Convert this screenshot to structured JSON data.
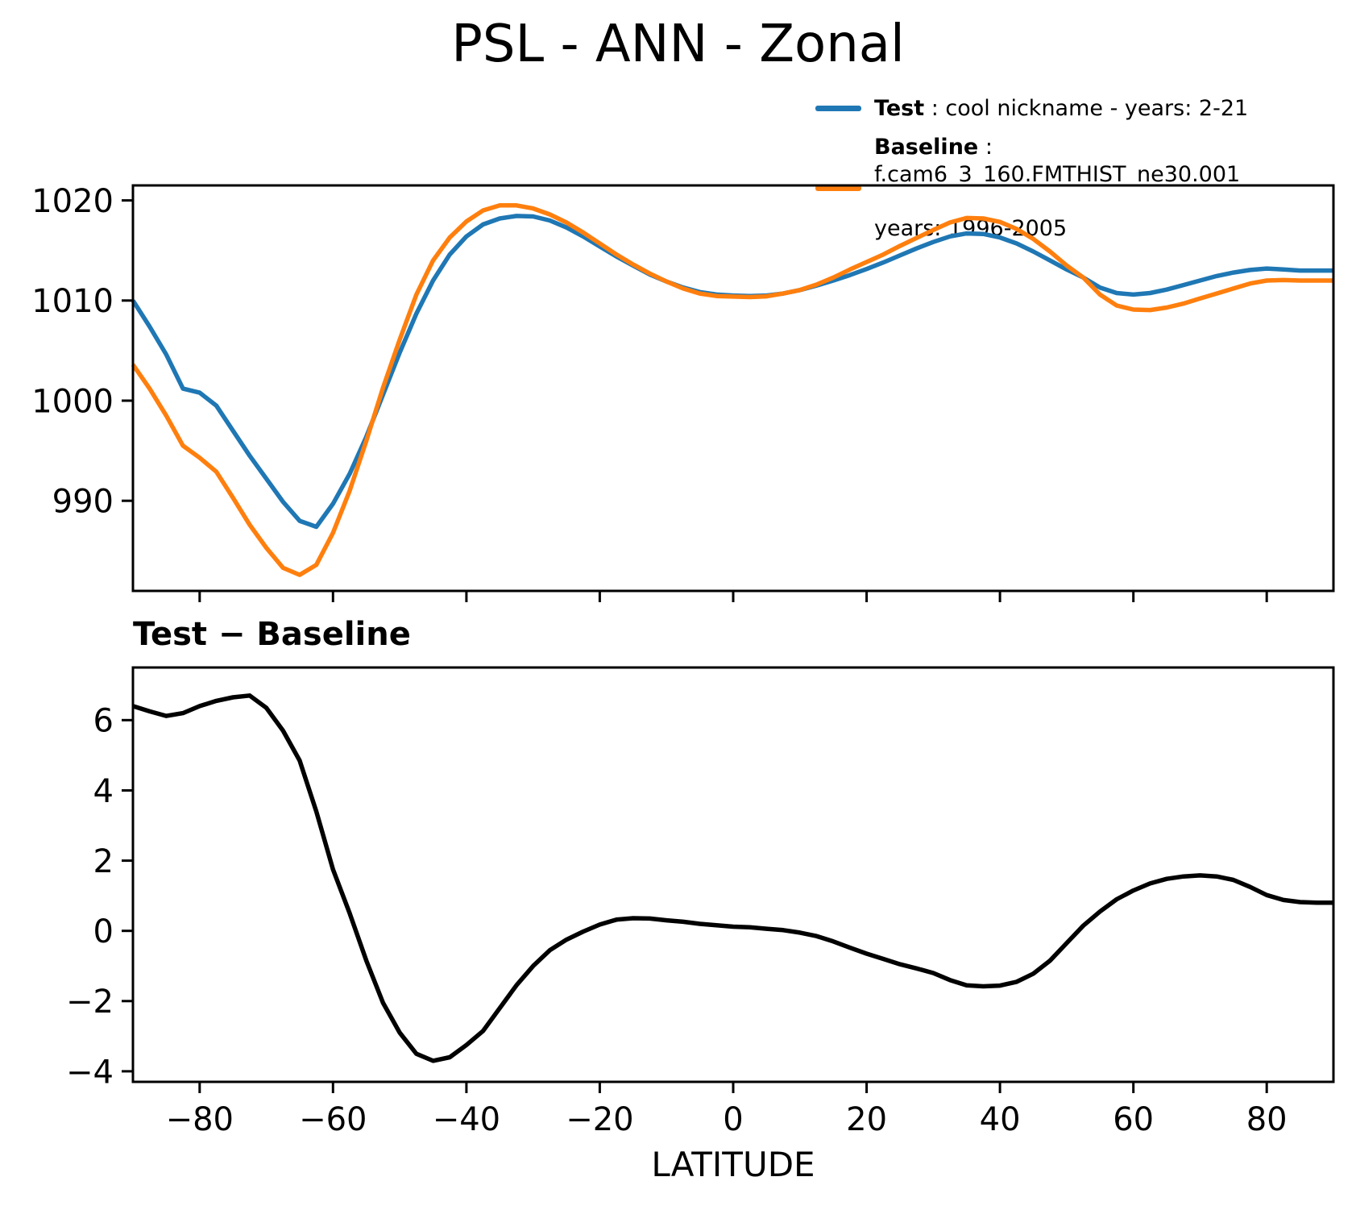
{
  "title": "PSL - ANN - Zonal",
  "xlabel": "LATITUDE",
  "legend": {
    "items": [
      {
        "label": "Test",
        "desc": " : cool nickname - years: 2-21",
        "desc2": "",
        "color": "#1f77b4"
      },
      {
        "label": "Baseline",
        "desc": " : f.cam6_3_160.FMTHIST_ne30.001",
        "desc2": "years: 1996-2005",
        "color": "#ff7f0e"
      }
    ]
  },
  "chart_data": [
    {
      "type": "line",
      "panel": "top",
      "xlim": [
        -90,
        90
      ],
      "ylim": [
        981,
        1021.5
      ],
      "grid": false,
      "legend_position": "upper right, outside axes",
      "xticks": [
        -80,
        -60,
        -40,
        -20,
        0,
        20,
        40,
        60,
        80
      ],
      "xtick_labels": null,
      "yticks": [
        1020,
        1010,
        1000,
        990
      ],
      "ytick_labels": [
        "1020",
        "1010",
        "1000",
        "990"
      ],
      "x": [
        -90,
        -87.5,
        -85,
        -82.5,
        -80,
        -77.5,
        -75,
        -72.5,
        -70,
        -67.5,
        -65,
        -62.5,
        -60,
        -57.5,
        -55,
        -52.5,
        -50,
        -47.5,
        -45,
        -42.5,
        -40,
        -37.5,
        -35,
        -32.5,
        -30,
        -27.5,
        -25,
        -22.5,
        -20,
        -17.5,
        -15,
        -12.5,
        -10,
        -7.5,
        -5,
        -2.5,
        0,
        2.5,
        5,
        7.5,
        10,
        12.5,
        15,
        17.5,
        20,
        22.5,
        25,
        27.5,
        30,
        32.5,
        35,
        37.5,
        40,
        42.5,
        45,
        47.5,
        50,
        52.5,
        55,
        57.5,
        60,
        62.5,
        65,
        67.5,
        70,
        72.5,
        75,
        77.5,
        80,
        82.5,
        85,
        87.5,
        90
      ],
      "series": [
        {
          "name": "Test",
          "color": "#1f77b4",
          "values": [
            1010.0,
            1007.4,
            1004.6,
            1001.2,
            1000.8,
            999.5,
            997.0,
            994.5,
            992.2,
            989.9,
            988.0,
            987.4,
            989.7,
            992.7,
            996.4,
            1000.6,
            1004.8,
            1008.7,
            1012.0,
            1014.6,
            1016.4,
            1017.6,
            1018.2,
            1018.45,
            1018.4,
            1018.0,
            1017.3,
            1016.4,
            1015.4,
            1014.4,
            1013.5,
            1012.6,
            1011.9,
            1011.3,
            1010.85,
            1010.6,
            1010.5,
            1010.45,
            1010.5,
            1010.7,
            1011.05,
            1011.5,
            1012.0,
            1012.55,
            1013.15,
            1013.8,
            1014.5,
            1015.2,
            1015.85,
            1016.4,
            1016.7,
            1016.65,
            1016.3,
            1015.7,
            1014.9,
            1014.0,
            1013.1,
            1012.3,
            1011.3,
            1010.75,
            1010.6,
            1010.75,
            1011.1,
            1011.55,
            1012.0,
            1012.45,
            1012.8,
            1013.05,
            1013.2,
            1013.1,
            1013.0,
            1013.0,
            1013.0
          ]
        },
        {
          "name": "Baseline",
          "color": "#ff7f0e",
          "values": [
            1003.6,
            1001.2,
            998.5,
            995.5,
            994.3,
            992.9,
            990.3,
            987.6,
            985.3,
            983.3,
            982.6,
            983.6,
            986.8,
            991.0,
            996.0,
            1001.3,
            1006.1,
            1010.6,
            1014.0,
            1016.3,
            1017.9,
            1019.0,
            1019.5,
            1019.5,
            1019.2,
            1018.6,
            1017.8,
            1016.8,
            1015.7,
            1014.6,
            1013.6,
            1012.7,
            1011.9,
            1011.2,
            1010.7,
            1010.45,
            1010.4,
            1010.35,
            1010.42,
            1010.7,
            1011.05,
            1011.6,
            1012.3,
            1013.1,
            1013.85,
            1014.6,
            1015.45,
            1016.25,
            1017.05,
            1017.8,
            1018.25,
            1018.2,
            1017.85,
            1017.15,
            1016.15,
            1014.9,
            1013.5,
            1012.3,
            1010.6,
            1009.5,
            1009.1,
            1009.05,
            1009.3,
            1009.7,
            1010.2,
            1010.7,
            1011.2,
            1011.7,
            1012.0,
            1012.05,
            1012.0,
            1012.0,
            1012.0
          ]
        }
      ]
    },
    {
      "type": "line",
      "panel": "bottom",
      "title": "Test − Baseline",
      "xlabel": "LATITUDE",
      "xlim": [
        -90,
        90
      ],
      "ylim": [
        -4.3,
        7.5
      ],
      "grid": false,
      "xticks": [
        -80,
        -60,
        -40,
        -20,
        0,
        20,
        40,
        60,
        80
      ],
      "xtick_labels": [
        "−80",
        "−60",
        "−40",
        "−20",
        "0",
        "20",
        "40",
        "60",
        "80"
      ],
      "yticks": [
        6,
        4,
        2,
        0,
        -2,
        -4
      ],
      "ytick_labels": [
        "6",
        "4",
        "2",
        "0",
        "−2",
        "−4"
      ],
      "x": [
        -90,
        -87.5,
        -85,
        -82.5,
        -80,
        -77.5,
        -75,
        -72.5,
        -70,
        -67.5,
        -65,
        -62.5,
        -60,
        -57.5,
        -55,
        -52.5,
        -50,
        -47.5,
        -45,
        -42.5,
        -40,
        -37.5,
        -35,
        -32.5,
        -30,
        -27.5,
        -25,
        -22.5,
        -20,
        -17.5,
        -15,
        -12.5,
        -10,
        -7.5,
        -5,
        -2.5,
        0,
        2.5,
        5,
        7.5,
        10,
        12.5,
        15,
        17.5,
        20,
        22.5,
        25,
        27.5,
        30,
        32.5,
        35,
        37.5,
        40,
        42.5,
        45,
        47.5,
        50,
        52.5,
        55,
        57.5,
        60,
        62.5,
        65,
        67.5,
        70,
        72.5,
        75,
        77.5,
        80,
        82.5,
        85,
        87.5,
        90
      ],
      "series": [
        {
          "name": "Test − Baseline",
          "color": "#000000",
          "values": [
            6.4,
            6.25,
            6.12,
            6.2,
            6.4,
            6.55,
            6.65,
            6.7,
            6.35,
            5.7,
            4.85,
            3.4,
            1.75,
            0.5,
            -0.85,
            -2.05,
            -2.9,
            -3.5,
            -3.7,
            -3.6,
            -3.25,
            -2.85,
            -2.2,
            -1.55,
            -1.0,
            -0.55,
            -0.25,
            -0.02,
            0.18,
            0.32,
            0.36,
            0.35,
            0.3,
            0.26,
            0.2,
            0.16,
            0.12,
            0.1,
            0.06,
            0.02,
            -0.05,
            -0.15,
            -0.3,
            -0.48,
            -0.65,
            -0.8,
            -0.95,
            -1.07,
            -1.2,
            -1.4,
            -1.55,
            -1.58,
            -1.56,
            -1.45,
            -1.22,
            -0.85,
            -0.35,
            0.15,
            0.55,
            0.9,
            1.15,
            1.35,
            1.48,
            1.55,
            1.58,
            1.55,
            1.45,
            1.25,
            1.02,
            0.88,
            0.82,
            0.8,
            0.8
          ]
        }
      ]
    }
  ]
}
